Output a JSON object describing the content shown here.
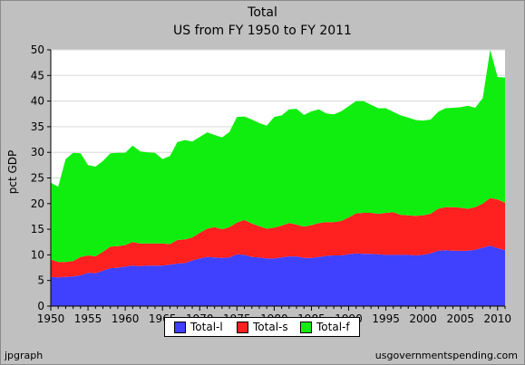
{
  "footer": {
    "left": "jpgraph",
    "right": "usgovernmentspending.com"
  },
  "chart_data": {
    "type": "area",
    "stacked": true,
    "title": "Total",
    "subtitle": "US from FY 1950 to FY 2011",
    "ylabel": "pct GDP",
    "xlabel": "",
    "xlim": [
      1950,
      2011
    ],
    "ylim": [
      0,
      50
    ],
    "yticks": [
      0,
      5,
      10,
      15,
      20,
      25,
      30,
      35,
      40,
      45,
      50
    ],
    "xticks": [
      1950,
      1955,
      1960,
      1965,
      1970,
      1975,
      1980,
      1985,
      1990,
      1995,
      2000,
      2005,
      2010
    ],
    "grid": true,
    "legend_position": "bottom",
    "x": [
      1950,
      1951,
      1952,
      1953,
      1954,
      1955,
      1956,
      1957,
      1958,
      1959,
      1960,
      1961,
      1962,
      1963,
      1964,
      1965,
      1966,
      1967,
      1968,
      1969,
      1970,
      1971,
      1972,
      1973,
      1974,
      1975,
      1976,
      1977,
      1978,
      1979,
      1980,
      1981,
      1982,
      1983,
      1984,
      1985,
      1986,
      1987,
      1988,
      1989,
      1990,
      1991,
      1992,
      1993,
      1994,
      1995,
      1996,
      1997,
      1998,
      1999,
      2000,
      2001,
      2002,
      2003,
      2004,
      2005,
      2006,
      2007,
      2008,
      2009,
      2010,
      2011
    ],
    "series": [
      {
        "name": "Total-l",
        "color": "#4040ff",
        "values": [
          5.7,
          5.6,
          5.7,
          5.8,
          6.0,
          6.5,
          6.4,
          6.9,
          7.4,
          7.5,
          7.7,
          7.9,
          7.8,
          7.9,
          7.9,
          7.9,
          8.1,
          8.3,
          8.4,
          8.9,
          9.3,
          9.6,
          9.5,
          9.4,
          9.5,
          10.1,
          10.0,
          9.6,
          9.5,
          9.3,
          9.3,
          9.5,
          9.7,
          9.7,
          9.4,
          9.4,
          9.6,
          9.8,
          9.9,
          9.9,
          10.1,
          10.3,
          10.2,
          10.2,
          10.1,
          10.0,
          10.0,
          10.0,
          10.0,
          9.9,
          10.0,
          10.3,
          10.8,
          10.9,
          10.8,
          10.8,
          10.8,
          11.0,
          11.4,
          11.8,
          11.3,
          10.9
        ]
      },
      {
        "name": "Total-s",
        "color": "#ff2020",
        "values": [
          3.4,
          3.0,
          2.9,
          3.0,
          3.6,
          3.4,
          3.3,
          3.7,
          4.2,
          4.2,
          4.2,
          4.6,
          4.4,
          4.3,
          4.3,
          4.3,
          4.0,
          4.6,
          4.6,
          4.5,
          5.0,
          5.5,
          5.9,
          5.6,
          5.9,
          6.2,
          6.8,
          6.5,
          6.1,
          5.8,
          6.0,
          6.2,
          6.5,
          6.2,
          6.1,
          6.4,
          6.6,
          6.6,
          6.5,
          6.7,
          7.2,
          7.8,
          8.0,
          8.0,
          7.9,
          8.2,
          8.3,
          7.8,
          7.7,
          7.7,
          7.7,
          7.7,
          8.2,
          8.4,
          8.5,
          8.4,
          8.2,
          8.3,
          8.6,
          9.3,
          9.5,
          9.3
        ]
      },
      {
        "name": "Total-f",
        "color": "#10ee10",
        "values": [
          15.0,
          14.7,
          20.1,
          21.1,
          20.2,
          17.6,
          17.5,
          17.7,
          18.2,
          18.2,
          18.0,
          18.8,
          18.0,
          17.8,
          17.7,
          16.5,
          17.2,
          19.1,
          19.4,
          18.7,
          18.7,
          18.8,
          18.0,
          17.9,
          18.6,
          20.6,
          20.2,
          20.3,
          20.1,
          20.1,
          21.6,
          21.5,
          22.2,
          22.6,
          21.8,
          22.2,
          22.2,
          21.2,
          21.0,
          21.4,
          21.7,
          21.9,
          21.8,
          21.1,
          20.6,
          20.4,
          19.6,
          19.4,
          19.1,
          18.7,
          18.5,
          18.4,
          18.9,
          19.3,
          19.4,
          19.6,
          20.1,
          19.4,
          20.6,
          28.9,
          23.9,
          24.4
        ]
      }
    ]
  }
}
